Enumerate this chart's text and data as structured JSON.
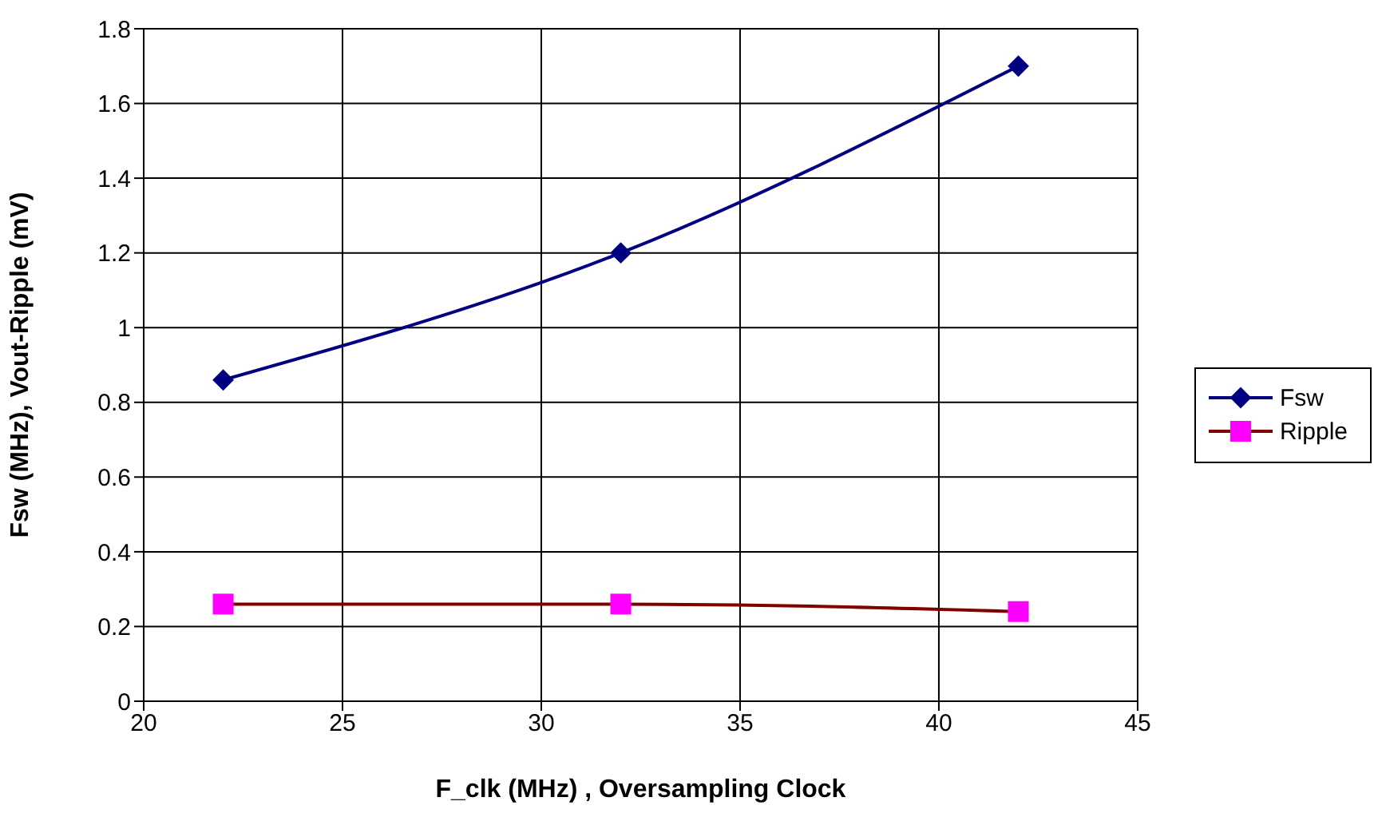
{
  "chart_data": {
    "type": "line",
    "xlabel": "F_clk (MHz) , Oversampling Clock",
    "ylabel": "Fsw (MHz), Vout-Ripple (mV)",
    "x": [
      22,
      32,
      42
    ],
    "series": [
      {
        "name": "Fsw",
        "color": "#000080",
        "values": [
          0.86,
          1.2,
          1.7
        ],
        "marker": "diamond"
      },
      {
        "name": "Ripple",
        "color": "#800000",
        "colors": [
          "#ff00ff",
          "#ff00ff",
          "#ff00ff"
        ],
        "values": [
          0.26,
          0.26,
          0.24
        ],
        "marker": "square"
      }
    ],
    "xlim": [
      20,
      45
    ],
    "xticks": [
      20,
      25,
      30,
      35,
      40,
      45
    ],
    "ylim": [
      0,
      1.8
    ],
    "yticks": [
      0,
      0.2,
      0.4,
      0.6,
      0.8,
      1,
      1.2,
      1.4,
      1.6,
      1.8
    ],
    "grid": true,
    "legend": "right"
  }
}
